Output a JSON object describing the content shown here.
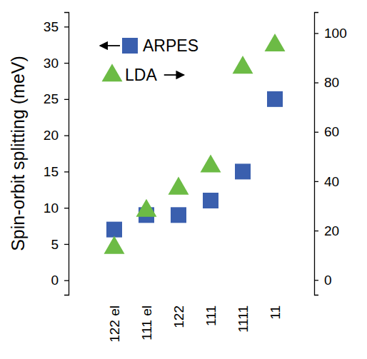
{
  "chart_data": {
    "type": "scatter",
    "ylabel": "Spin-orbit splitting (meV)",
    "categories": [
      "122 el",
      "111 el",
      "122",
      "111",
      "1111",
      "11"
    ],
    "ylim": [
      -2,
      37
    ],
    "yticks": [
      0,
      5,
      10,
      15,
      20,
      25,
      30,
      35
    ],
    "y2lim": [
      -6,
      108.5
    ],
    "y2ticks": [
      0,
      20,
      40,
      60,
      80,
      100
    ],
    "legend": "upper left",
    "series": [
      {
        "name": "ARPES",
        "color": "#3a5fae",
        "marker": "square",
        "values": [
          7,
          9,
          9,
          11,
          15,
          25
        ]
      },
      {
        "name": "LDA",
        "color": "#6cbb45",
        "marker": "triangle",
        "axis": "y2",
        "values": [
          13,
          28,
          37,
          46,
          86,
          95
        ]
      }
    ]
  }
}
